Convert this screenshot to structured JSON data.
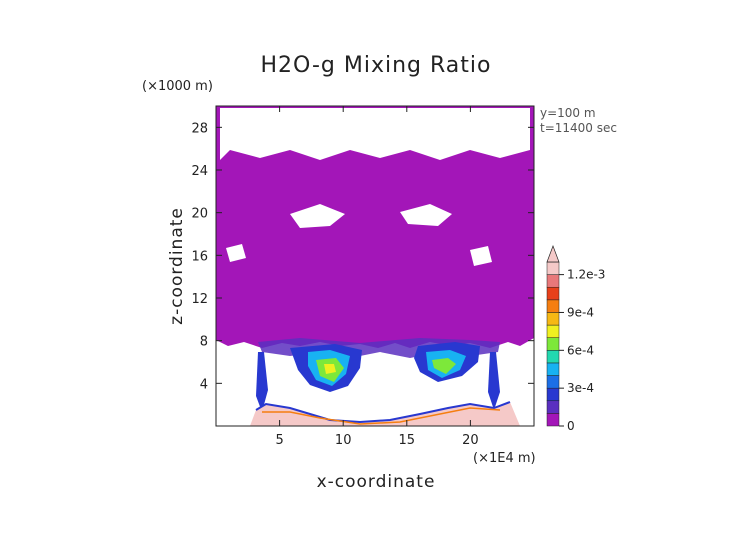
{
  "chart_data": {
    "type": "heatmap",
    "title": "H2O-g Mixing Ratio",
    "xlabel": "x-coordinate",
    "ylabel": "z-coordinate",
    "x_multiplier": "(×1E4 m)",
    "y_multiplier": "(×1000 m)",
    "x_ticks": [
      5,
      10,
      15,
      20
    ],
    "y_ticks": [
      4,
      8,
      12,
      16,
      20,
      24,
      28
    ],
    "xlim": [
      0,
      25
    ],
    "ylim": [
      0,
      30
    ],
    "annotations": [
      "y=100 m",
      "t=11400 sec"
    ],
    "colorbar": {
      "tick_labels": [
        "0",
        "3e-4",
        "6e-4",
        "9e-4",
        "1.2e-3"
      ],
      "ticks": [
        0,
        0.0003,
        0.0006,
        0.0009,
        0.0012
      ],
      "levels": [
        0,
        0.0001,
        0.0002,
        0.0003,
        0.0004,
        0.0005,
        0.0006,
        0.0007,
        0.0008,
        0.0009,
        0.001,
        0.0011,
        0.0012,
        0.0013
      ],
      "colors": [
        "#a316b8",
        "#5a2fc0",
        "#2838d0",
        "#1c6fe6",
        "#18b2f2",
        "#22d8b0",
        "#7de83a",
        "#f0f020",
        "#f6b814",
        "#f57e10",
        "#e8401a",
        "#e8787a",
        "#f5c9c8"
      ],
      "extend": "max"
    }
  }
}
